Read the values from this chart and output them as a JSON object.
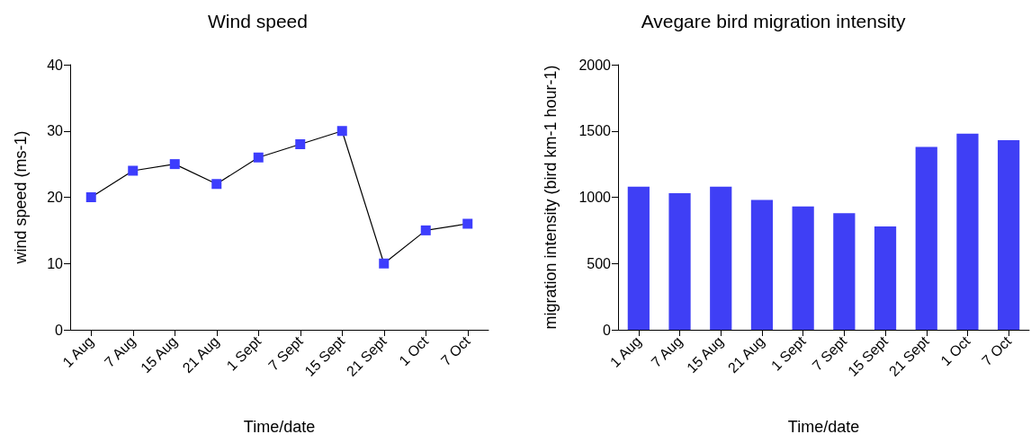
{
  "chart_data": [
    {
      "type": "line",
      "title": "Wind speed",
      "xlabel": "Time/date",
      "ylabel": "wind speed (ms-1)",
      "categories": [
        "1 Aug",
        "7 Aug",
        "15 Aug",
        "21 Aug",
        "1 Sept",
        "7 Sept",
        "15 Sept",
        "21 Sept",
        "1 Oct",
        "7 Oct"
      ],
      "series": [
        {
          "color": "#3d3dfd",
          "values": [
            20,
            24,
            25,
            22,
            26,
            28,
            30,
            10,
            15,
            16
          ]
        }
      ],
      "ylim": [
        0,
        40
      ],
      "yticks": [
        0,
        10,
        20,
        30,
        40
      ],
      "grid": false,
      "marker": "square",
      "line_style": "solid"
    },
    {
      "type": "bar",
      "title": "Avegare bird migration intensity",
      "xlabel": "Time/date",
      "ylabel": "migration intensity (bird km-1 hour-1)",
      "categories": [
        "1 Aug",
        "7 Aug",
        "15 Aug",
        "21 Aug",
        "1 Sept",
        "7 Sept",
        "15 Sept",
        "21 Sept",
        "1 Oct",
        "7 Oct"
      ],
      "series": [
        {
          "color": "#3f3ff5",
          "values": [
            1080,
            1030,
            1080,
            980,
            930,
            880,
            780,
            1380,
            1480,
            1430
          ]
        }
      ],
      "ylim": [
        0,
        2000
      ],
      "yticks": [
        0,
        500,
        1000,
        1500,
        2000
      ],
      "grid": false
    }
  ]
}
